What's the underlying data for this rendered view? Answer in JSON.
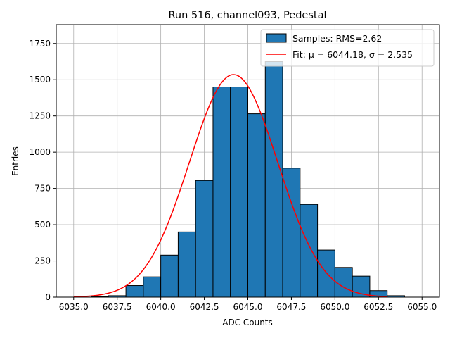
{
  "chart_data": {
    "type": "bar",
    "title": "Run 516, channel093, Pedestal",
    "xlabel": "ADC Counts",
    "ylabel": "Entries",
    "xlim": [
      6034.0,
      6056.0
    ],
    "ylim": [
      0,
      1880
    ],
    "xticks": [
      6035.0,
      6037.5,
      6040.0,
      6042.5,
      6045.0,
      6047.5,
      6050.0,
      6052.5,
      6055.0
    ],
    "xtick_labels": [
      "6035.0",
      "6037.5",
      "6040.0",
      "6042.5",
      "6045.0",
      "6047.5",
      "6050.0",
      "6052.5",
      "6055.0"
    ],
    "yticks": [
      0,
      250,
      500,
      750,
      1000,
      1250,
      1500,
      1750
    ],
    "ytick_labels": [
      "0",
      "250",
      "500",
      "750",
      "1000",
      "1250",
      "1500",
      "1750"
    ],
    "grid": true,
    "legend_position": "top-right",
    "bins": [
      [
        6036.0,
        6037.0,
        5
      ],
      [
        6037.0,
        6038.0,
        10
      ],
      [
        6038.0,
        6039.0,
        80
      ],
      [
        6039.0,
        6040.0,
        140
      ],
      [
        6040.0,
        6041.0,
        290
      ],
      [
        6041.0,
        6042.0,
        450
      ],
      [
        6042.0,
        6043.0,
        805
      ],
      [
        6043.0,
        6044.0,
        1450
      ],
      [
        6044.0,
        6045.0,
        1450
      ],
      [
        6045.0,
        6046.0,
        1265
      ],
      [
        6046.0,
        6047.0,
        1625
      ],
      [
        6047.0,
        6048.0,
        890
      ],
      [
        6048.0,
        6049.0,
        640
      ],
      [
        6049.0,
        6050.0,
        325
      ],
      [
        6050.0,
        6051.0,
        205
      ],
      [
        6051.0,
        6052.0,
        145
      ],
      [
        6052.0,
        6053.0,
        45
      ],
      [
        6053.0,
        6054.0,
        10
      ]
    ],
    "series": [
      {
        "name": "Samples: RMS=2.62",
        "kind": "histogram",
        "color": "#1f77b4"
      },
      {
        "name": "Fit: μ = 6044.18, σ = 2.535",
        "kind": "gaussian",
        "color": "#ff0000",
        "mu": 6044.18,
        "sigma": 2.535,
        "amplitude": 1535,
        "x_range": [
          6035.0,
          6053.0
        ]
      }
    ]
  }
}
